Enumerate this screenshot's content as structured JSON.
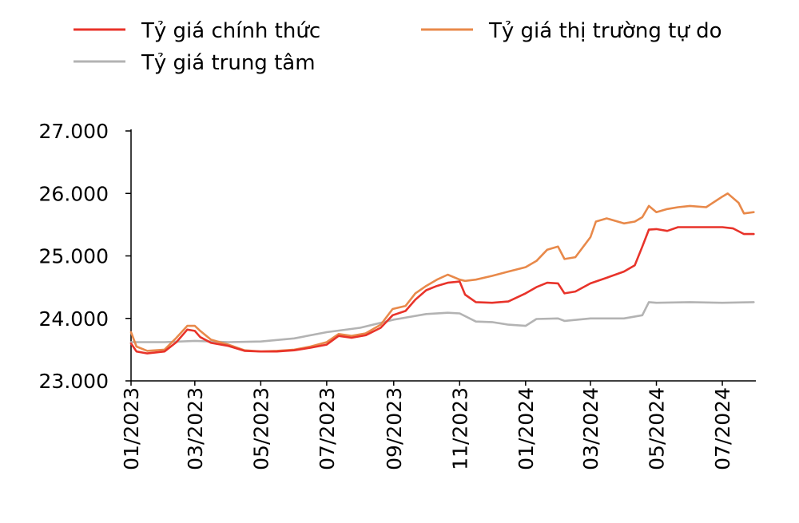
{
  "chart_data": {
    "type": "line",
    "title": "",
    "xlabel": "",
    "ylabel": "",
    "ylim": [
      23000,
      27000
    ],
    "y_ticks": [
      "23.000",
      "24.000",
      "25.000",
      "26.000",
      "27.000"
    ],
    "x_ticks": [
      "01/2023",
      "03/2023",
      "05/2023",
      "07/2023",
      "09/2023",
      "11/2023",
      "01/2024",
      "03/2024",
      "05/2024",
      "07/2024"
    ],
    "grid": false,
    "legend_position": "top",
    "series": [
      {
        "name": "Tỷ giá chính thức",
        "color": "#e8332a",
        "points": [
          [
            "2023-01-01",
            23600
          ],
          [
            "2023-01-06",
            23470
          ],
          [
            "2023-01-16",
            23440
          ],
          [
            "2023-02-01",
            23470
          ],
          [
            "2023-02-12",
            23620
          ],
          [
            "2023-02-22",
            23820
          ],
          [
            "2023-03-01",
            23800
          ],
          [
            "2023-03-06",
            23700
          ],
          [
            "2023-03-16",
            23610
          ],
          [
            "2023-04-01",
            23560
          ],
          [
            "2023-04-16",
            23480
          ],
          [
            "2023-05-01",
            23470
          ],
          [
            "2023-05-16",
            23470
          ],
          [
            "2023-06-01",
            23490
          ],
          [
            "2023-06-16",
            23530
          ],
          [
            "2023-07-01",
            23580
          ],
          [
            "2023-07-12",
            23720
          ],
          [
            "2023-07-24",
            23690
          ],
          [
            "2023-08-06",
            23730
          ],
          [
            "2023-08-20",
            23850
          ],
          [
            "2023-08-31",
            24050
          ],
          [
            "2023-09-12",
            24120
          ],
          [
            "2023-09-21",
            24300
          ],
          [
            "2023-10-01",
            24450
          ],
          [
            "2023-10-11",
            24520
          ],
          [
            "2023-10-21",
            24570
          ],
          [
            "2023-11-01",
            24590
          ],
          [
            "2023-11-06",
            24380
          ],
          [
            "2023-11-16",
            24260
          ],
          [
            "2023-12-01",
            24250
          ],
          [
            "2023-12-16",
            24270
          ],
          [
            "2024-01-01",
            24400
          ],
          [
            "2024-01-11",
            24500
          ],
          [
            "2024-01-21",
            24570
          ],
          [
            "2024-01-31",
            24560
          ],
          [
            "2024-02-06",
            24400
          ],
          [
            "2024-02-16",
            24430
          ],
          [
            "2024-03-01",
            24560
          ],
          [
            "2024-03-16",
            24650
          ],
          [
            "2024-04-01",
            24750
          ],
          [
            "2024-04-11",
            24850
          ],
          [
            "2024-04-18",
            25150
          ],
          [
            "2024-04-24",
            25420
          ],
          [
            "2024-05-01",
            25430
          ],
          [
            "2024-05-11",
            25400
          ],
          [
            "2024-05-21",
            25460
          ],
          [
            "2024-06-01",
            25460
          ],
          [
            "2024-06-16",
            25460
          ],
          [
            "2024-07-01",
            25460
          ],
          [
            "2024-07-11",
            25440
          ],
          [
            "2024-07-21",
            25350
          ],
          [
            "2024-07-30",
            25350
          ]
        ]
      },
      {
        "name": "Tỷ giá thị trường tự do",
        "color": "#e8894a",
        "points": [
          [
            "2023-01-01",
            23780
          ],
          [
            "2023-01-06",
            23550
          ],
          [
            "2023-01-16",
            23480
          ],
          [
            "2023-02-01",
            23500
          ],
          [
            "2023-02-12",
            23690
          ],
          [
            "2023-02-22",
            23880
          ],
          [
            "2023-03-01",
            23880
          ],
          [
            "2023-03-06",
            23800
          ],
          [
            "2023-03-16",
            23660
          ],
          [
            "2023-04-01",
            23580
          ],
          [
            "2023-04-16",
            23490
          ],
          [
            "2023-05-01",
            23470
          ],
          [
            "2023-05-16",
            23480
          ],
          [
            "2023-06-01",
            23500
          ],
          [
            "2023-06-16",
            23550
          ],
          [
            "2023-07-01",
            23620
          ],
          [
            "2023-07-12",
            23750
          ],
          [
            "2023-07-24",
            23720
          ],
          [
            "2023-08-06",
            23760
          ],
          [
            "2023-08-20",
            23900
          ],
          [
            "2023-08-31",
            24150
          ],
          [
            "2023-09-12",
            24200
          ],
          [
            "2023-09-21",
            24400
          ],
          [
            "2023-10-01",
            24520
          ],
          [
            "2023-10-11",
            24620
          ],
          [
            "2023-10-21",
            24700
          ],
          [
            "2023-11-01",
            24620
          ],
          [
            "2023-11-06",
            24600
          ],
          [
            "2023-11-16",
            24620
          ],
          [
            "2023-12-01",
            24680
          ],
          [
            "2023-12-16",
            24750
          ],
          [
            "2024-01-01",
            24820
          ],
          [
            "2024-01-11",
            24920
          ],
          [
            "2024-01-21",
            25100
          ],
          [
            "2024-01-31",
            25150
          ],
          [
            "2024-02-06",
            24950
          ],
          [
            "2024-02-16",
            24980
          ],
          [
            "2024-03-01",
            25300
          ],
          [
            "2024-03-06",
            25550
          ],
          [
            "2024-03-16",
            25600
          ],
          [
            "2024-04-01",
            25520
          ],
          [
            "2024-04-11",
            25550
          ],
          [
            "2024-04-18",
            25620
          ],
          [
            "2024-04-24",
            25800
          ],
          [
            "2024-05-01",
            25700
          ],
          [
            "2024-05-11",
            25750
          ],
          [
            "2024-05-21",
            25780
          ],
          [
            "2024-06-01",
            25800
          ],
          [
            "2024-06-16",
            25780
          ],
          [
            "2024-07-01",
            25950
          ],
          [
            "2024-07-06",
            26000
          ],
          [
            "2024-07-16",
            25850
          ],
          [
            "2024-07-21",
            25680
          ],
          [
            "2024-07-30",
            25700
          ]
        ]
      },
      {
        "name": "Tỷ giá trung tâm",
        "color": "#b3b3b3",
        "points": [
          [
            "2023-01-01",
            23620
          ],
          [
            "2023-02-01",
            23620
          ],
          [
            "2023-03-01",
            23640
          ],
          [
            "2023-04-01",
            23620
          ],
          [
            "2023-05-01",
            23630
          ],
          [
            "2023-06-01",
            23680
          ],
          [
            "2023-07-01",
            23780
          ],
          [
            "2023-08-01",
            23850
          ],
          [
            "2023-09-01",
            23980
          ],
          [
            "2023-10-01",
            24070
          ],
          [
            "2023-10-21",
            24090
          ],
          [
            "2023-11-01",
            24080
          ],
          [
            "2023-11-16",
            23950
          ],
          [
            "2023-12-01",
            23940
          ],
          [
            "2023-12-16",
            23900
          ],
          [
            "2024-01-01",
            23880
          ],
          [
            "2024-01-11",
            23990
          ],
          [
            "2024-01-31",
            24000
          ],
          [
            "2024-02-06",
            23960
          ],
          [
            "2024-03-01",
            24000
          ],
          [
            "2024-04-01",
            24000
          ],
          [
            "2024-04-18",
            24050
          ],
          [
            "2024-04-24",
            24260
          ],
          [
            "2024-05-01",
            24250
          ],
          [
            "2024-06-01",
            24260
          ],
          [
            "2024-07-01",
            24250
          ],
          [
            "2024-07-30",
            24260
          ]
        ]
      }
    ]
  }
}
